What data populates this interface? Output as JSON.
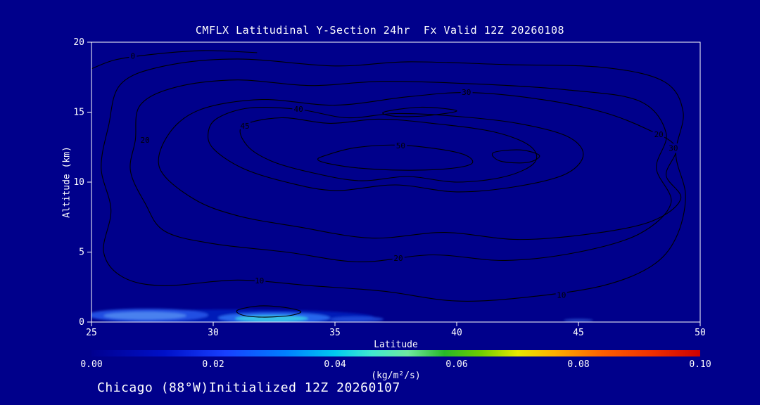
{
  "colors": {
    "background": "#00008b",
    "text": "#ffffff",
    "axis": "#ffffff",
    "contour": "#000000"
  },
  "title": "CMFLX Latitudinal Y-Section 24hr  Fx Valid 12Z 20260108",
  "footer": "Chicago (88°W)Initialized 12Z 20260107",
  "chart_data": {
    "type": "contour",
    "title": "CMFLX Latitudinal Y-Section 24hr  Fx Valid 12Z 20260108",
    "xlabel": "Latitude",
    "ylabel": "Altitude (km)",
    "units": "(kg/m²/s)",
    "xlim": [
      25,
      50
    ],
    "ylim": [
      0,
      20
    ],
    "x_ticks": [
      "25",
      "30",
      "35",
      "40",
      "45",
      "50"
    ],
    "y_ticks": [
      "0",
      "5",
      "10",
      "15",
      "20"
    ],
    "grid": false,
    "contour_levels": [
      0,
      10,
      20,
      30,
      40,
      45,
      50
    ],
    "max_region": {
      "lat": 37.5,
      "alt_km": 12,
      "value": 50
    },
    "contours": [
      {
        "level": 0,
        "closed": false,
        "points": [
          [
            25.0,
            18.1
          ],
          [
            26.0,
            18.75
          ],
          [
            27.6,
            19.15
          ],
          [
            29.6,
            19.4
          ],
          [
            31.8,
            19.25
          ]
        ]
      },
      {
        "level": 10,
        "closed": true,
        "points": [
          [
            25.7,
            14
          ],
          [
            26.2,
            17
          ],
          [
            28,
            18.3
          ],
          [
            31,
            18.8
          ],
          [
            35,
            18.3
          ],
          [
            38,
            18.6
          ],
          [
            42,
            18.4
          ],
          [
            46,
            18.2
          ],
          [
            48.5,
            17.2
          ],
          [
            49.3,
            15
          ],
          [
            49.0,
            12
          ],
          [
            49.4,
            9
          ],
          [
            49.0,
            6
          ],
          [
            48.0,
            4
          ],
          [
            46,
            2.6
          ],
          [
            43,
            1.8
          ],
          [
            40,
            1.5
          ],
          [
            37,
            2.2
          ],
          [
            34,
            2.6
          ],
          [
            31,
            3.0
          ],
          [
            28,
            2.6
          ],
          [
            26.3,
            3.2
          ],
          [
            25.5,
            5
          ],
          [
            25.8,
            8
          ],
          [
            25.4,
            11
          ]
        ]
      },
      {
        "level": 20,
        "closed": true,
        "points": [
          [
            26.8,
            13
          ],
          [
            27.0,
            15.5
          ],
          [
            28.5,
            16.8
          ],
          [
            31,
            17.3
          ],
          [
            34,
            16.9
          ],
          [
            37,
            17.2
          ],
          [
            41,
            17.0
          ],
          [
            44.5,
            16.6
          ],
          [
            47.5,
            15.8
          ],
          [
            48.6,
            13.5
          ],
          [
            48.2,
            11
          ],
          [
            48.8,
            8.5
          ],
          [
            47.5,
            6.3
          ],
          [
            45,
            5.0
          ],
          [
            42,
            4.4
          ],
          [
            39,
            4.8
          ],
          [
            36,
            4.3
          ],
          [
            33,
            5.0
          ],
          [
            30,
            5.6
          ],
          [
            28,
            6.5
          ],
          [
            27.2,
            8.5
          ],
          [
            26.6,
            10.8
          ]
        ]
      },
      {
        "level": 30,
        "closed": true,
        "points": [
          [
            27.8,
            11
          ],
          [
            28.2,
            13.5
          ],
          [
            29.5,
            15.2
          ],
          [
            32,
            15.9
          ],
          [
            35,
            15.5
          ],
          [
            38,
            16.1
          ],
          [
            40.5,
            16.4
          ],
          [
            43.5,
            15.9
          ],
          [
            46,
            15.0
          ],
          [
            47.8,
            13.8
          ],
          [
            49.0,
            12.5
          ],
          [
            48.6,
            10.5
          ],
          [
            49.2,
            8.8
          ],
          [
            48.0,
            7.2
          ],
          [
            45.5,
            6.3
          ],
          [
            42.5,
            5.9
          ],
          [
            39.5,
            6.4
          ],
          [
            36.5,
            6.0
          ],
          [
            33.5,
            6.8
          ],
          [
            31,
            7.6
          ],
          [
            29.2,
            8.8
          ]
        ]
      },
      {
        "level": 40,
        "closed": true,
        "points": [
          [
            30.2,
            14.6
          ],
          [
            31.5,
            15.3
          ],
          [
            33.5,
            15.2
          ],
          [
            35.5,
            14.6
          ],
          [
            37.5,
            14.9
          ],
          [
            40,
            14.7
          ],
          [
            42.5,
            14.2
          ],
          [
            44.5,
            13.3
          ],
          [
            45.2,
            12.0
          ],
          [
            44.5,
            10.6
          ],
          [
            42.5,
            9.7
          ],
          [
            40,
            9.3
          ],
          [
            37.5,
            9.8
          ],
          [
            35,
            9.4
          ],
          [
            33,
            10.0
          ],
          [
            31.2,
            11.0
          ],
          [
            30.0,
            12.4
          ],
          [
            29.8,
            13.6
          ]
        ]
      },
      {
        "level": 45,
        "closed": true,
        "points": [
          [
            31.2,
            14.0
          ],
          [
            32.8,
            14.6
          ],
          [
            34.8,
            14.2
          ],
          [
            36.8,
            14.5
          ],
          [
            39,
            14.2
          ],
          [
            41.5,
            13.6
          ],
          [
            43,
            12.6
          ],
          [
            43.2,
            11.4
          ],
          [
            42,
            10.4
          ],
          [
            40,
            10.0
          ],
          [
            38,
            10.4
          ],
          [
            36,
            10.1
          ],
          [
            34,
            10.7
          ],
          [
            32.4,
            11.5
          ],
          [
            31.4,
            12.6
          ]
        ]
      },
      {
        "level": 45,
        "closed": true,
        "points": [
          [
            37.0,
            15.0
          ],
          [
            38.5,
            15.35
          ],
          [
            40.0,
            15.1
          ],
          [
            38.8,
            14.75
          ],
          [
            37.5,
            14.7
          ]
        ]
      },
      {
        "level": 50,
        "closed": true,
        "points": [
          [
            34.6,
            11.9
          ],
          [
            35.8,
            12.45
          ],
          [
            37.5,
            12.65
          ],
          [
            39.3,
            12.35
          ],
          [
            40.4,
            11.9
          ],
          [
            40.6,
            11.3
          ],
          [
            39.6,
            10.95
          ],
          [
            37.8,
            10.85
          ],
          [
            36.0,
            11.0
          ],
          [
            34.8,
            11.3
          ],
          [
            34.3,
            11.6
          ]
        ]
      },
      {
        "level": 50,
        "closed": true,
        "points": [
          [
            41.5,
            12.1
          ],
          [
            42.6,
            12.3
          ],
          [
            43.4,
            11.9
          ],
          [
            42.9,
            11.4
          ],
          [
            41.8,
            11.5
          ]
        ]
      },
      {
        "level": 10,
        "closed": true,
        "points": [
          [
            31.0,
            0.85
          ],
          [
            31.9,
            1.15
          ],
          [
            32.9,
            1.05
          ],
          [
            33.6,
            0.75
          ],
          [
            33.1,
            0.45
          ],
          [
            32.0,
            0.35
          ],
          [
            31.2,
            0.5
          ]
        ]
      }
    ],
    "contour_labels": [
      {
        "text": "0",
        "lat": 26.7,
        "alt": 19.0
      },
      {
        "text": "10",
        "lat": 31.9,
        "alt": 2.95
      },
      {
        "text": "10",
        "lat": 44.3,
        "alt": 1.9
      },
      {
        "text": "20",
        "lat": 27.2,
        "alt": 13.0
      },
      {
        "text": "20",
        "lat": 37.6,
        "alt": 4.55
      },
      {
        "text": "20",
        "lat": 48.3,
        "alt": 13.4
      },
      {
        "text": "30",
        "lat": 40.4,
        "alt": 16.4
      },
      {
        "text": "30",
        "lat": 48.9,
        "alt": 12.4
      },
      {
        "text": "40",
        "lat": 33.5,
        "alt": 15.2
      },
      {
        "text": "45",
        "lat": 31.3,
        "alt": 14.0
      },
      {
        "text": "50",
        "lat": 37.7,
        "alt": 12.6
      }
    ],
    "surface_fills": [
      {
        "lat": 30.8,
        "alt": 0.35,
        "rx": 5.8,
        "ry": 0.55,
        "color": "#0020c0",
        "opacity": 0.85
      },
      {
        "lat": 27.3,
        "alt": 0.5,
        "rx": 2.5,
        "ry": 0.45,
        "color": "#2255e8",
        "opacity": 0.9
      },
      {
        "lat": 27.2,
        "alt": 0.45,
        "rx": 1.7,
        "ry": 0.28,
        "color": "#4e86f0",
        "opacity": 0.9
      },
      {
        "lat": 32.5,
        "alt": 0.3,
        "rx": 2.3,
        "ry": 0.38,
        "color": "#2a6af0",
        "opacity": 0.95
      },
      {
        "lat": 32.4,
        "alt": 0.25,
        "rx": 1.5,
        "ry": 0.22,
        "color": "#38c8e8",
        "opacity": 0.95
      },
      {
        "lat": 35.9,
        "alt": 0.2,
        "rx": 1.1,
        "ry": 0.2,
        "color": "#2050e0",
        "opacity": 0.8
      },
      {
        "lat": 45.0,
        "alt": 0.12,
        "rx": 0.6,
        "ry": 0.12,
        "color": "#2a50d0",
        "opacity": 0.7
      }
    ],
    "colorbar": {
      "min": 0.0,
      "max": 0.1,
      "tick_labels": [
        "0.00",
        "0.02",
        "0.04",
        "0.06",
        "0.08",
        "0.10"
      ],
      "gradient_stops": [
        {
          "at": 0.0,
          "color": "#000090"
        },
        {
          "at": 0.12,
          "color": "#0010c8"
        },
        {
          "at": 0.22,
          "color": "#1840ff"
        },
        {
          "at": 0.32,
          "color": "#0080ff"
        },
        {
          "at": 0.4,
          "color": "#00c8f0"
        },
        {
          "at": 0.46,
          "color": "#40e8d0"
        },
        {
          "at": 0.52,
          "color": "#70e8a0"
        },
        {
          "at": 0.58,
          "color": "#28b828"
        },
        {
          "at": 0.64,
          "color": "#70cc00"
        },
        {
          "at": 0.7,
          "color": "#e8e800"
        },
        {
          "at": 0.76,
          "color": "#ffb000"
        },
        {
          "at": 0.84,
          "color": "#ff6000"
        },
        {
          "at": 0.92,
          "color": "#f03000"
        },
        {
          "at": 1.0,
          "color": "#cc0000"
        }
      ]
    }
  }
}
